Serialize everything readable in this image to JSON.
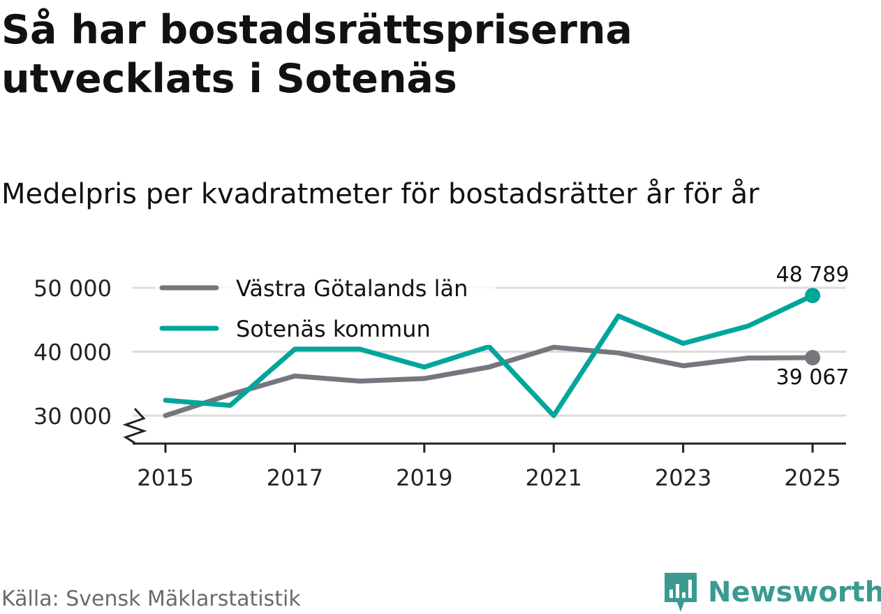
{
  "title": "Så har bostadsrättspriserna utvecklats i Sotenäs",
  "subtitle": "Medelpris per kvadratmeter för bostadsrätter år för år",
  "source": "Källa: Svensk Mäklarstatistik",
  "brand": {
    "name": "Newsworthy",
    "icon": "newsworthy-logo-icon"
  },
  "colors": {
    "vastra": "#76767e",
    "sotenas": "#00a59b",
    "grid": "#dcdcdc",
    "axis": "#222222"
  },
  "chart_data": {
    "type": "line",
    "title": "Så har bostadsrättspriserna utvecklats i Sotenäs",
    "subtitle": "Medelpris per kvadratmeter för bostadsrätter år för år",
    "xlabel": "",
    "ylabel": "",
    "x": [
      2015,
      2016,
      2017,
      2018,
      2019,
      2020,
      2021,
      2022,
      2023,
      2024,
      2025
    ],
    "ylim": [
      30000,
      50000
    ],
    "yticks": [
      30000,
      40000,
      50000
    ],
    "ytick_labels": [
      "30 000",
      "40 000",
      "50 000"
    ],
    "xticks": [
      2015,
      2017,
      2019,
      2021,
      2023,
      2025
    ],
    "xtick_labels": [
      "2015",
      "2017",
      "2019",
      "2021",
      "2023",
      "2025"
    ],
    "axis_break": true,
    "grid": true,
    "legend_position": "top-left",
    "series": [
      {
        "name": "Västra Götalands län",
        "color": "#76767e",
        "values": [
          30000,
          33300,
          36200,
          35400,
          35800,
          37600,
          40700,
          39800,
          37800,
          39000,
          39067
        ],
        "end_label": "39 067"
      },
      {
        "name": "Sotenäs kommun",
        "color": "#00a59b",
        "values": [
          32400,
          31600,
          40400,
          40400,
          37600,
          40800,
          30000,
          45600,
          41300,
          44000,
          48789
        ],
        "end_label": "48 789"
      }
    ]
  }
}
